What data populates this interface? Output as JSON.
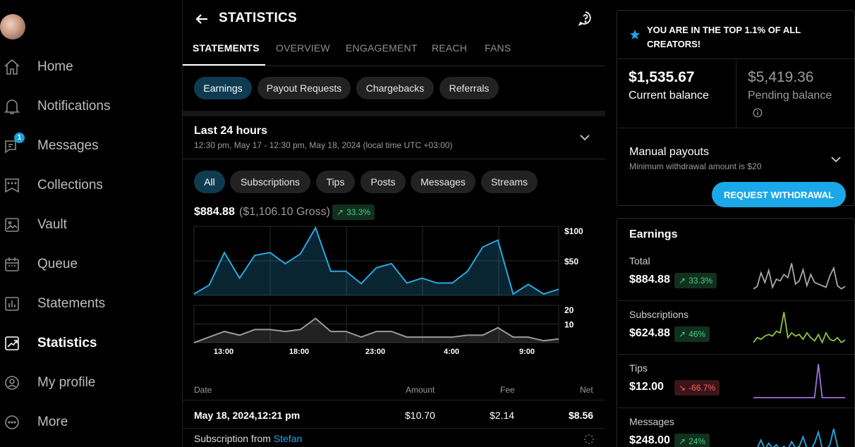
{
  "sidebar": {
    "items": [
      {
        "key": "home",
        "label": "Home",
        "icon": "home-icon"
      },
      {
        "key": "notifications",
        "label": "Notifications",
        "icon": "bell-icon"
      },
      {
        "key": "messages",
        "label": "Messages",
        "icon": "chat-icon",
        "badge": "1"
      },
      {
        "key": "collections",
        "label": "Collections",
        "icon": "stars-icon"
      },
      {
        "key": "vault",
        "label": "Vault",
        "icon": "image-icon"
      },
      {
        "key": "queue",
        "label": "Queue",
        "icon": "calendar-icon"
      },
      {
        "key": "statements",
        "label": "Statements",
        "icon": "bar-chart-icon"
      },
      {
        "key": "statistics",
        "label": "Statistics",
        "icon": "trend-chart-icon",
        "active": true
      },
      {
        "key": "my_profile",
        "label": "My profile",
        "icon": "user-circle-icon"
      },
      {
        "key": "more",
        "label": "More",
        "icon": "more-dots-icon"
      }
    ]
  },
  "header": {
    "title": "STATISTICS"
  },
  "tabs": [
    {
      "label": "STATEMENTS",
      "active": true
    },
    {
      "label": "OVERVIEW"
    },
    {
      "label": "ENGAGEMENT"
    },
    {
      "label": "REACH"
    },
    {
      "label": "FANS"
    }
  ],
  "statement_types": [
    {
      "label": "Earnings",
      "active": true
    },
    {
      "label": "Payout Requests"
    },
    {
      "label": "Chargebacks"
    },
    {
      "label": "Referrals"
    }
  ],
  "period": {
    "title": "Last 24 hours",
    "range": "12:30 pm, May 17 - 12:30 pm, May 18, 2024 (local time UTC +03:00)"
  },
  "filters": [
    {
      "label": "All",
      "active": true
    },
    {
      "label": "Subscriptions"
    },
    {
      "label": "Tips"
    },
    {
      "label": "Posts"
    },
    {
      "label": "Messages"
    },
    {
      "label": "Streams"
    }
  ],
  "summary": {
    "net": "$884.88",
    "gross": "($1,106.10 Gross)",
    "change": "33.3%"
  },
  "colors": {
    "accent": "#1aa8e8",
    "up": "#3ed17a",
    "down": "#ff5e62",
    "line_main": "#29a8e0",
    "line_sec": "#9a9a9a"
  },
  "chart_data": [
    {
      "type": "area",
      "ylim": [
        0,
        100
      ],
      "yticks": [
        "$100",
        "$50"
      ],
      "values": [
        2,
        15,
        62,
        25,
        58,
        62,
        46,
        60,
        98,
        35,
        35,
        17,
        40,
        46,
        18,
        25,
        18,
        18,
        35,
        70,
        80,
        2,
        16,
        2,
        9
      ]
    },
    {
      "type": "area",
      "ylim": [
        0,
        20
      ],
      "yticks": [
        "20",
        "10"
      ],
      "xticks": [
        "13:00",
        "18:00",
        "23:00",
        "4:00",
        "9:00"
      ],
      "values": [
        0,
        3,
        6,
        4,
        7,
        7,
        6,
        7,
        13,
        6,
        6,
        3,
        6,
        6,
        3,
        3,
        3,
        3,
        4,
        4,
        8,
        3,
        3,
        1,
        2
      ]
    }
  ],
  "table": {
    "headers": {
      "date": "Date",
      "amount": "Amount",
      "fee": "Fee",
      "net": "Net"
    },
    "row": {
      "date": "May 18, 2024,12:21 pm",
      "amount": "$10.70",
      "fee": "$2.14",
      "net": "$8.56",
      "desc_prefix": "Subscription from",
      "desc_link": "Stefan"
    }
  },
  "top_banner": "YOU ARE IN THE TOP 1.1% OF ALL CREATORS!",
  "balance": {
    "current_value": "$1,535.67",
    "current_label": "Current balance",
    "pending_value": "$5,419.36",
    "pending_label": "Pending balance"
  },
  "payouts": {
    "title": "Manual payouts",
    "subtitle": "Minimum withdrawal amount is $20",
    "button": "REQUEST WITHDRAWAL"
  },
  "earnings": {
    "title": "Earnings",
    "items": [
      {
        "label": "Total",
        "value": "$884.88",
        "change": "33.3%",
        "dir": "up",
        "color": "#a8a8a8",
        "series": [
          2,
          5,
          22,
          10,
          25,
          4,
          14,
          12,
          20,
          16,
          34,
          8,
          12,
          26,
          6,
          20,
          10,
          8,
          6,
          4,
          18,
          28,
          6,
          2,
          5
        ]
      },
      {
        "label": "Subscriptions",
        "value": "$624.88",
        "change": "46%",
        "dir": "up",
        "color": "#8cc63f",
        "series": [
          2,
          8,
          6,
          10,
          12,
          10,
          16,
          14,
          40,
          8,
          14,
          10,
          12,
          6,
          14,
          8,
          4,
          12,
          2,
          14,
          6,
          4,
          8,
          2,
          5
        ]
      },
      {
        "label": "Tips",
        "value": "$12.00",
        "change": "-66.7%",
        "dir": "down",
        "color": "#a070e0",
        "series": [
          0,
          0,
          0,
          0,
          0,
          0,
          0,
          0,
          0,
          0,
          0,
          0,
          0,
          0,
          0,
          0,
          0,
          42,
          0,
          0,
          0,
          0,
          0,
          0,
          0
        ]
      },
      {
        "label": "Messages",
        "value": "$248.00",
        "change": "24%",
        "dir": "up",
        "color": "#29a8e0",
        "series": [
          0,
          4,
          14,
          2,
          10,
          4,
          8,
          2,
          6,
          2,
          12,
          4,
          6,
          18,
          4,
          2,
          10,
          24,
          4,
          2,
          8,
          28,
          6,
          2,
          4
        ]
      }
    ]
  }
}
